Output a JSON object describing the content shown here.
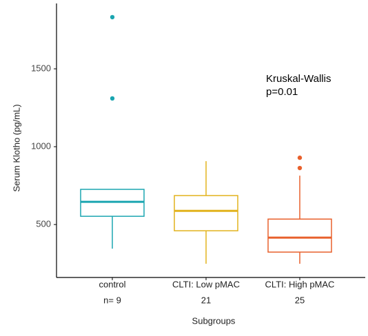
{
  "chart_data": {
    "type": "box",
    "x_label": "Subgroups",
    "y_label": "Serum Klotho (pg/mL)",
    "categories": [
      "control",
      "CLTI: Low pMAC",
      "CLTI: High pMAC"
    ],
    "n_labels": [
      "n= 9",
      "21",
      "25"
    ],
    "series": [
      {
        "color": "#1aa5b0",
        "min": 345,
        "q1": 553,
        "median": 646,
        "q3": 726,
        "max": 726,
        "outliers": [
          1832,
          1310
        ]
      },
      {
        "color": "#e2b21c",
        "min": 248,
        "q1": 460,
        "median": 588,
        "q3": 686,
        "max": 907,
        "outliers": []
      },
      {
        "color": "#e8602c",
        "min": 248,
        "q1": 323,
        "median": 416,
        "q3": 535,
        "max": 814,
        "outliers": [
          929,
          863
        ]
      }
    ],
    "ylim": [
      160,
      1920
    ],
    "yticks": [
      500,
      1000,
      1500
    ],
    "annotation": [
      "Kruskal-Wallis",
      "p=0.01"
    ]
  }
}
